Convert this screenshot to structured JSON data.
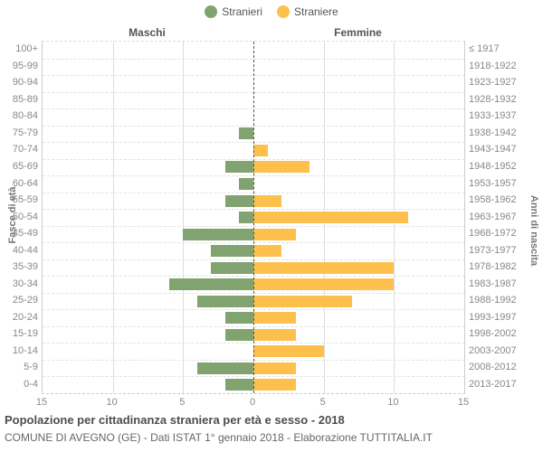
{
  "legend": {
    "males_label": "Stranieri",
    "females_label": "Straniere"
  },
  "header": {
    "left": "Maschi",
    "right": "Femmine"
  },
  "axis": {
    "left_label": "Fasce di età",
    "right_label": "Anni di nascita",
    "x_ticks": [
      "15",
      "10",
      "5",
      "0",
      "5",
      "10",
      "15"
    ]
  },
  "colors": {
    "males": "#81a36f",
    "females": "#fec04d",
    "center_line": "#55553f",
    "grid": "#dddddd",
    "label_text": "#888888"
  },
  "title": "Popolazione per cittadinanza straniera per età e sesso - 2018",
  "subtitle": "COMUNE DI AVEGNO (GE) - Dati ISTAT 1° gennaio 2018 - Elaborazione TUTTITALIA.IT",
  "chart_data": {
    "type": "bar",
    "variant": "population_pyramid",
    "xlabel": "",
    "ylabel_left": "Fasce di età",
    "ylabel_right": "Anni di nascita",
    "xlim_each_side": [
      0,
      15
    ],
    "grid": true,
    "legend_position": "top-center",
    "age_groups": [
      "100+",
      "95-99",
      "90-94",
      "85-89",
      "80-84",
      "75-79",
      "70-74",
      "65-69",
      "60-64",
      "55-59",
      "50-54",
      "45-49",
      "40-44",
      "35-39",
      "30-34",
      "25-29",
      "20-24",
      "15-19",
      "10-14",
      "5-9",
      "0-4"
    ],
    "birth_years": [
      "≤ 1917",
      "1918-1922",
      "1923-1927",
      "1928-1932",
      "1933-1937",
      "1938-1942",
      "1943-1947",
      "1948-1952",
      "1953-1957",
      "1958-1962",
      "1963-1967",
      "1968-1972",
      "1973-1977",
      "1978-1982",
      "1983-1987",
      "1988-1992",
      "1993-1997",
      "1998-2002",
      "2003-2007",
      "2008-2012",
      "2013-2017"
    ],
    "series": [
      {
        "name": "Stranieri",
        "side": "left",
        "color": "#81a36f",
        "values": [
          0,
          0,
          0,
          0,
          0,
          1,
          0,
          2,
          1,
          2,
          1,
          5,
          3,
          3,
          6,
          4,
          2,
          2,
          0,
          4,
          2
        ]
      },
      {
        "name": "Straniere",
        "side": "right",
        "color": "#fec04d",
        "values": [
          0,
          0,
          0,
          0,
          0,
          0,
          1,
          4,
          0,
          2,
          11,
          3,
          2,
          10,
          10,
          7,
          3,
          3,
          5,
          3,
          3
        ]
      }
    ]
  }
}
